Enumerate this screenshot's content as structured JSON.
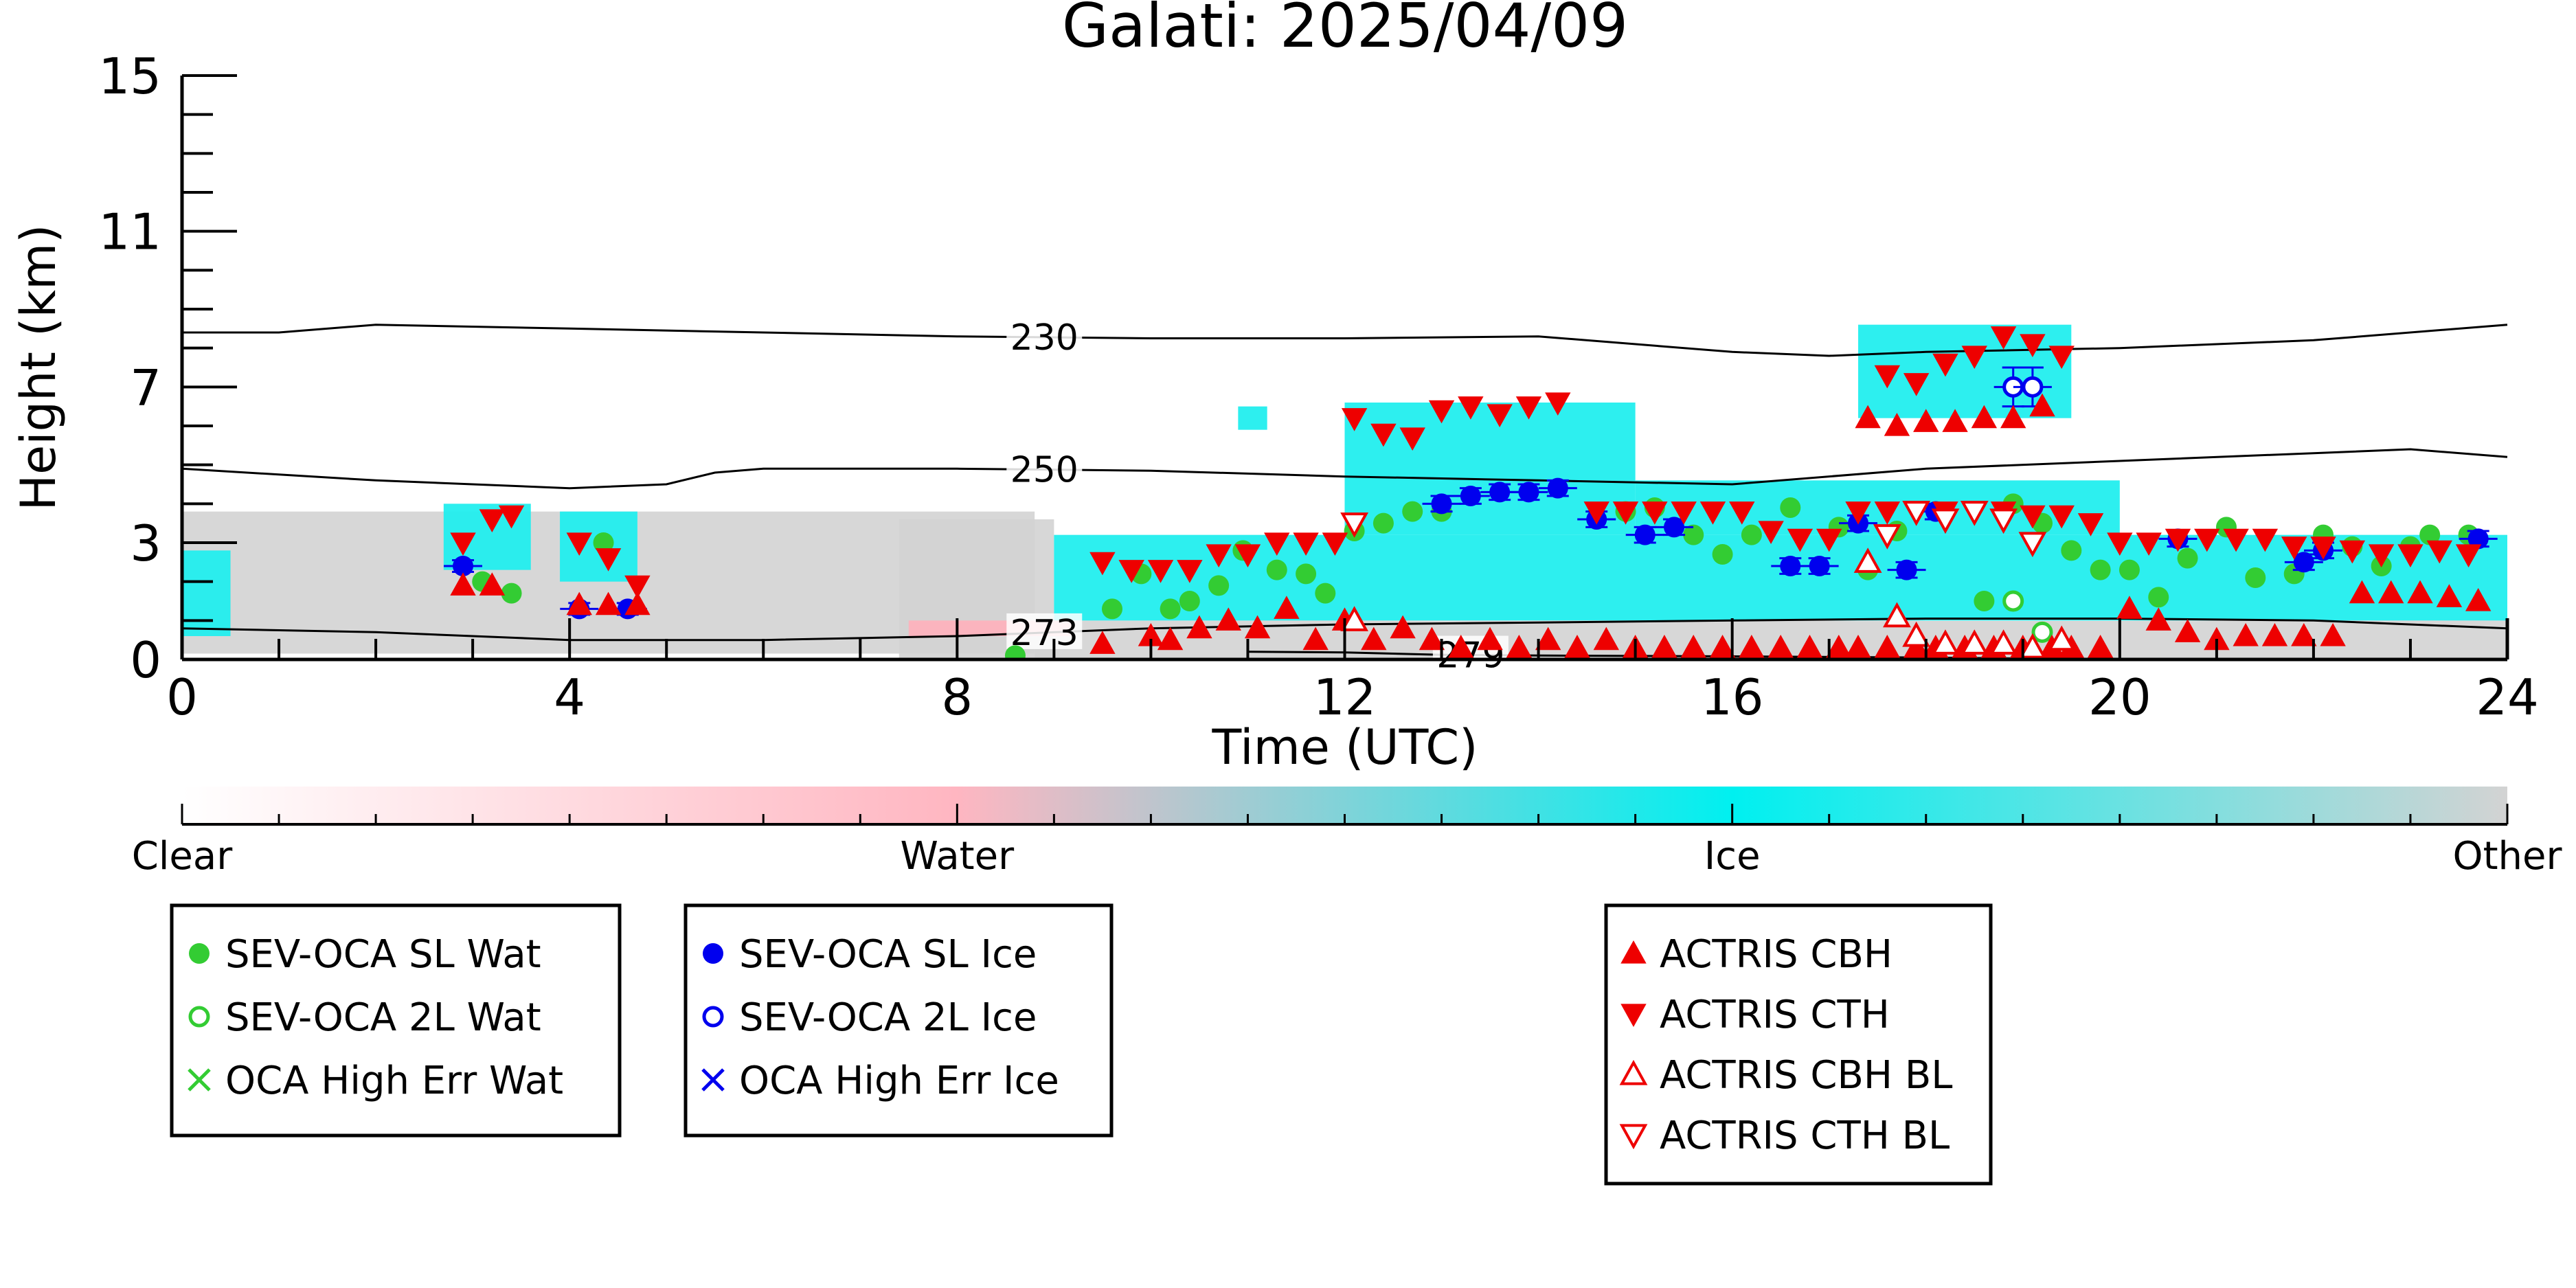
{
  "chart_data": {
    "type": "scatter",
    "title": "Galati: 2025/04/09",
    "xlabel": "Time (UTC)",
    "ylabel": "Height (km)",
    "xlim": [
      0,
      24
    ],
    "ylim": [
      0,
      15
    ],
    "x_ticks": [
      "0",
      "4",
      "8",
      "12",
      "16",
      "20",
      "24"
    ],
    "x_tick_values": [
      0,
      4,
      8,
      12,
      16,
      20,
      24
    ],
    "y_ticks": [
      "0",
      "3",
      "7",
      "11",
      "15"
    ],
    "y_tick_values": [
      0,
      3,
      7,
      11,
      15
    ],
    "colorbar": {
      "labels": [
        "Clear",
        "Water",
        "Ice",
        "Other"
      ],
      "colors": [
        "#ffffff",
        "#ffb6c1",
        "#00f0f0",
        "#d3d3d3"
      ]
    },
    "colors": {
      "water": "#33cc33",
      "ice": "#0000ee",
      "actris": "#ee0000",
      "ice_mask": "#22eeee",
      "water_mask": "#ffb0bb",
      "other_mask": "#d3d3d3"
    },
    "isotherms": [
      {
        "label": "230",
        "label_at": 8.9,
        "x": [
          0,
          1,
          2,
          4,
          6,
          8,
          10,
          12,
          14,
          16,
          17,
          18,
          20,
          22,
          24
        ],
        "y": [
          8.4,
          8.4,
          8.6,
          8.5,
          8.4,
          8.3,
          8.25,
          8.25,
          8.3,
          7.9,
          7.8,
          7.9,
          8.0,
          8.2,
          8.6
        ]
      },
      {
        "label": "250",
        "label_at": 8.9,
        "x": [
          0,
          2,
          4,
          5,
          5.5,
          6,
          8,
          10,
          12,
          14,
          16,
          18,
          20,
          22,
          23,
          24
        ],
        "y": [
          4.9,
          4.6,
          4.4,
          4.5,
          4.8,
          4.9,
          4.9,
          4.85,
          4.7,
          4.6,
          4.5,
          4.9,
          5.1,
          5.3,
          5.4,
          5.2
        ]
      },
      {
        "label": "273",
        "label_at": 8.9,
        "x": [
          0,
          2,
          4,
          6,
          8,
          10,
          12,
          14,
          16,
          18,
          20,
          22,
          24
        ],
        "y": [
          0.8,
          0.7,
          0.5,
          0.5,
          0.6,
          0.8,
          0.9,
          0.95,
          1.0,
          1.05,
          1.05,
          1.0,
          0.8
        ]
      },
      {
        "label": "279",
        "label_at": 13.3,
        "x": [
          11,
          12,
          13,
          14,
          16,
          18,
          20
        ],
        "y": [
          0.2,
          0.18,
          0.12,
          0.1,
          0.08,
          0.05,
          0.0
        ]
      }
    ],
    "mask_regions": [
      {
        "class": "other",
        "x0": 0,
        "x1": 8.8,
        "y0": 0.15,
        "y1": 3.8
      },
      {
        "class": "other",
        "x0": 7.4,
        "x1": 9.0,
        "y0": 0.0,
        "y1": 3.6
      },
      {
        "class": "other",
        "x0": 8.8,
        "x1": 24,
        "y0": 0.0,
        "y1": 1.0
      },
      {
        "class": "water",
        "x0": 7.5,
        "x1": 9.2,
        "y0": 0.6,
        "y1": 1.0
      },
      {
        "class": "ice",
        "x0": 0,
        "x1": 0.5,
        "y0": 0.6,
        "y1": 2.8
      },
      {
        "class": "ice",
        "x0": 2.7,
        "x1": 3.6,
        "y0": 2.3,
        "y1": 4.0
      },
      {
        "class": "ice",
        "x0": 3.9,
        "x1": 4.7,
        "y0": 2.0,
        "y1": 3.8
      },
      {
        "class": "ice",
        "x0": 9.0,
        "x1": 24,
        "y0": 1.0,
        "y1": 3.2
      },
      {
        "class": "ice",
        "x0": 12.0,
        "x1": 15.0,
        "y0": 3.2,
        "y1": 6.6
      },
      {
        "class": "ice",
        "x0": 15.0,
        "x1": 20.0,
        "y0": 3.2,
        "y1": 4.6
      },
      {
        "class": "ice",
        "x0": 17.3,
        "x1": 19.5,
        "y0": 6.2,
        "y1": 8.6
      },
      {
        "class": "ice",
        "x0": 10.9,
        "x1": 11.2,
        "y0": 5.9,
        "y1": 6.5
      }
    ],
    "series": [
      {
        "name": "SEV-OCA SL Wat",
        "marker": "filled-circle",
        "color": "#33cc33",
        "x": [
          3.1,
          3.4,
          4.35,
          8.6,
          9.6,
          9.9,
          10.2,
          10.4,
          10.7,
          10.95,
          11.3,
          11.6,
          11.8,
          12.1,
          12.4,
          12.7,
          13.0,
          14.9,
          15.2,
          15.6,
          15.9,
          16.2,
          16.6,
          17.1,
          17.4,
          17.7,
          18.6,
          18.9,
          19.2,
          19.5,
          19.8,
          20.1,
          20.4,
          20.7,
          21.1,
          21.4,
          21.8,
          22.1,
          22.4,
          22.7,
          23.0,
          23.2,
          23.6
        ],
        "y": [
          2.0,
          1.7,
          3.0,
          0.1,
          1.3,
          2.2,
          1.3,
          1.5,
          1.9,
          2.8,
          2.3,
          2.2,
          1.7,
          3.3,
          3.5,
          3.8,
          3.8,
          3.8,
          3.9,
          3.2,
          2.7,
          3.2,
          3.9,
          3.4,
          2.3,
          3.3,
          1.5,
          4.0,
          3.5,
          2.8,
          2.3,
          2.3,
          1.6,
          2.6,
          3.4,
          2.1,
          2.2,
          3.2,
          2.9,
          2.4,
          2.9,
          3.2,
          3.2
        ]
      },
      {
        "name": "SEV-OCA 2L Wat",
        "marker": "open-circle",
        "color": "#33cc33",
        "x": [
          18.9,
          19.2
        ],
        "y": [
          1.5,
          0.7
        ]
      },
      {
        "name": "OCA High Err Wat",
        "marker": "x",
        "color": "#33cc33",
        "x": [],
        "y": []
      },
      {
        "name": "SEV-OCA SL Ice",
        "marker": "filled-circle",
        "color": "#0000ee",
        "x": [
          2.9,
          4.1,
          4.6,
          13.0,
          13.3,
          13.6,
          13.9,
          14.2,
          14.6,
          15.1,
          15.4,
          16.6,
          16.9,
          17.3,
          17.8,
          18.1,
          20.6,
          21.9,
          22.1,
          23.7
        ],
        "y": [
          2.4,
          1.3,
          1.3,
          4.0,
          4.2,
          4.3,
          4.3,
          4.4,
          3.6,
          3.2,
          3.4,
          2.4,
          2.4,
          3.5,
          2.3,
          3.8,
          3.1,
          2.5,
          2.8,
          3.1
        ],
        "err": [
          0.15,
          0.15,
          0.15,
          0.2,
          0.2,
          0.2,
          0.2,
          0.2,
          0.2,
          0.2,
          0.2,
          0.2,
          0.2,
          0.2,
          0.2,
          0.2,
          0.2,
          0.2,
          0.2,
          0.2
        ]
      },
      {
        "name": "SEV-OCA 2L Ice",
        "marker": "open-circle",
        "color": "#0000ee",
        "x": [
          18.9,
          19.1
        ],
        "y": [
          7.0,
          7.0
        ],
        "err": [
          0.5,
          0.5
        ]
      },
      {
        "name": "OCA High Err Ice",
        "marker": "x",
        "color": "#0000ee",
        "x": [],
        "y": []
      },
      {
        "name": "ACTRIS CBH",
        "marker": "filled-triangle-up",
        "color": "#ee0000",
        "x": [
          2.9,
          3.2,
          4.1,
          4.4,
          4.7,
          9.5,
          10.0,
          10.2,
          10.5,
          10.8,
          11.1,
          11.4,
          11.7,
          12.0,
          12.3,
          12.6,
          12.9,
          13.2,
          13.5,
          13.8,
          14.1,
          14.4,
          14.7,
          15.0,
          15.3,
          15.6,
          15.9,
          16.2,
          16.5,
          16.8,
          17.1,
          17.3,
          17.6,
          17.9,
          18.1,
          18.4,
          18.7,
          19.0,
          19.3,
          19.5,
          19.8,
          20.1,
          20.4,
          20.7,
          21.0,
          21.3,
          21.6,
          21.9,
          22.2,
          22.5,
          22.8,
          23.1,
          23.4,
          23.7,
          17.4,
          17.7,
          18.0,
          18.3,
          18.6,
          18.9,
          19.2
        ],
        "y": [
          1.9,
          1.9,
          1.4,
          1.4,
          1.4,
          0.4,
          0.6,
          0.5,
          0.8,
          1.0,
          0.8,
          1.3,
          0.5,
          1.0,
          0.5,
          0.8,
          0.5,
          0.3,
          0.5,
          0.3,
          0.5,
          0.3,
          0.5,
          0.3,
          0.3,
          0.3,
          0.3,
          0.3,
          0.3,
          0.3,
          0.3,
          0.3,
          0.3,
          0.3,
          0.3,
          0.3,
          0.3,
          0.3,
          0.3,
          0.3,
          0.3,
          1.3,
          1.0,
          0.7,
          0.5,
          0.6,
          0.6,
          0.6,
          0.6,
          1.7,
          1.7,
          1.7,
          1.6,
          1.5,
          6.2,
          6.0,
          6.1,
          6.1,
          6.2,
          6.2,
          6.5
        ]
      },
      {
        "name": "ACTRIS CTH",
        "marker": "filled-triangle-down",
        "color": "#ee0000",
        "x": [
          2.9,
          3.2,
          3.4,
          4.1,
          4.4,
          4.7,
          9.5,
          9.8,
          10.1,
          10.4,
          10.7,
          11.0,
          11.3,
          11.6,
          11.9,
          12.1,
          12.4,
          12.7,
          13.0,
          13.3,
          13.6,
          13.9,
          14.2,
          14.6,
          14.9,
          15.2,
          15.5,
          15.8,
          16.1,
          16.4,
          16.7,
          17.0,
          17.3,
          17.6,
          17.9,
          18.2,
          18.5,
          18.8,
          19.1,
          19.4,
          19.7,
          20.0,
          20.3,
          20.6,
          20.9,
          21.2,
          21.5,
          21.8,
          22.1,
          22.4,
          22.7,
          23.0,
          23.3,
          23.6,
          17.6,
          17.9,
          18.2,
          18.5,
          18.8,
          19.1,
          19.4
        ],
        "y": [
          3.0,
          3.6,
          3.7,
          3.0,
          2.6,
          1.9,
          2.5,
          2.3,
          2.3,
          2.3,
          2.7,
          2.7,
          3.0,
          3.0,
          3.0,
          6.2,
          5.8,
          5.7,
          6.4,
          6.5,
          6.3,
          6.5,
          6.6,
          3.8,
          3.8,
          3.8,
          3.8,
          3.8,
          3.8,
          3.3,
          3.1,
          3.1,
          3.8,
          3.8,
          3.8,
          3.8,
          3.8,
          3.8,
          3.7,
          3.7,
          3.5,
          3.0,
          3.0,
          3.1,
          3.1,
          3.1,
          3.1,
          2.9,
          2.9,
          2.8,
          2.7,
          2.7,
          2.8,
          2.7,
          7.3,
          7.1,
          7.6,
          7.8,
          8.3,
          8.1,
          7.8
        ]
      },
      {
        "name": "ACTRIS CBH BL",
        "marker": "open-triangle-up",
        "color": "#ee0000",
        "x": [
          12.1,
          17.4,
          17.7,
          17.9,
          18.2,
          18.5,
          18.8,
          19.1,
          19.4
        ],
        "y": [
          1.0,
          2.5,
          1.1,
          0.6,
          0.4,
          0.4,
          0.4,
          0.3,
          0.5
        ]
      },
      {
        "name": "ACTRIS CTH BL",
        "marker": "open-triangle-down",
        "color": "#ee0000",
        "x": [
          12.1,
          17.6,
          17.9,
          18.2,
          18.5,
          18.8,
          19.1
        ],
        "y": [
          3.5,
          3.2,
          3.8,
          3.6,
          3.8,
          3.6,
          3.0
        ]
      }
    ],
    "legends": [
      {
        "id": "water",
        "entries": [
          "SEV-OCA SL Wat",
          "SEV-OCA 2L Wat",
          "OCA High Err Wat"
        ]
      },
      {
        "id": "ice",
        "entries": [
          "SEV-OCA SL Ice",
          "SEV-OCA 2L Ice",
          "OCA High Err Ice"
        ]
      },
      {
        "id": "actris",
        "entries": [
          "ACTRIS CBH",
          "ACTRIS CTH",
          "ACTRIS CBH BL",
          "ACTRIS CTH BL"
        ]
      }
    ]
  }
}
